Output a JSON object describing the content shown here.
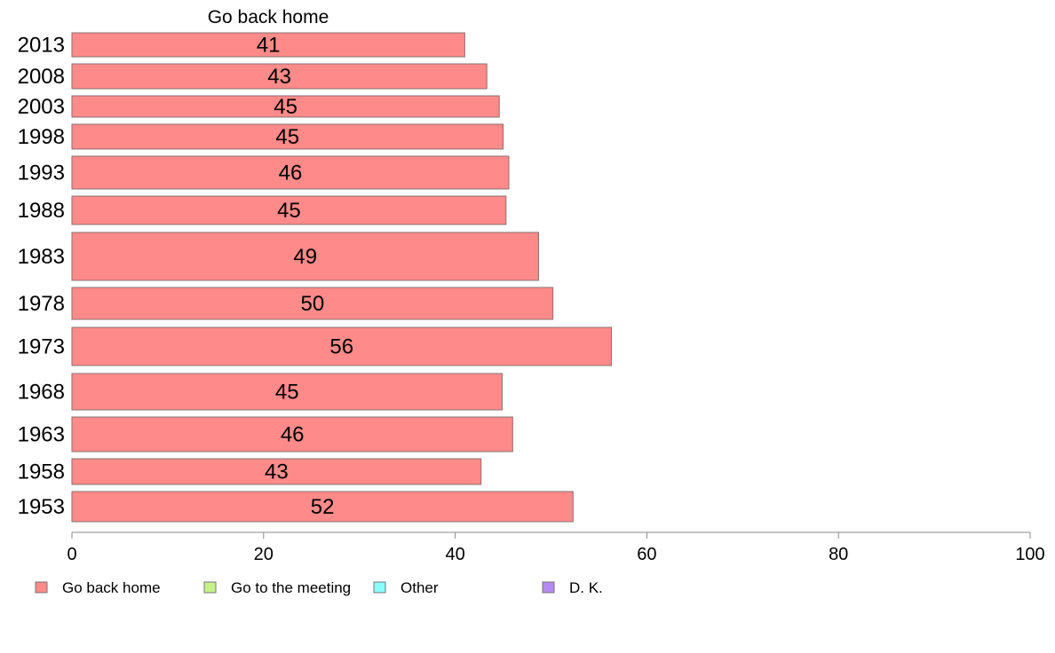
{
  "chart_data": {
    "type": "bar",
    "orientation": "horizontal",
    "title": "Go back home",
    "categories": [
      "2013",
      "2008",
      "2003",
      "1998",
      "1993",
      "1988",
      "1983",
      "1978",
      "1973",
      "1968",
      "1963",
      "1958",
      "1953"
    ],
    "series": [
      {
        "name": "Go back home",
        "values": [
          41,
          43.3,
          44.6,
          45,
          45.6,
          45.3,
          48.7,
          50.2,
          56.3,
          44.9,
          46,
          42.7,
          52.3
        ],
        "labels": [
          "41",
          "43",
          "45",
          "45",
          "46",
          "45",
          "49",
          "50",
          "56",
          "45",
          "46",
          "43",
          "52"
        ]
      }
    ],
    "legend": [
      {
        "label": "Go back home",
        "color": "#ff8a8a"
      },
      {
        "label": "Go to the meeting",
        "color": "#c8f08a"
      },
      {
        "label": "Other",
        "color": "#8afcfc"
      },
      {
        "label": "D. K.",
        "color": "#b48af0"
      }
    ],
    "xlim": [
      0,
      100
    ],
    "xticks": [
      "0",
      "20",
      "40",
      "60",
      "80",
      "100"
    ],
    "legend_position": "bottom-left",
    "grid": false
  }
}
